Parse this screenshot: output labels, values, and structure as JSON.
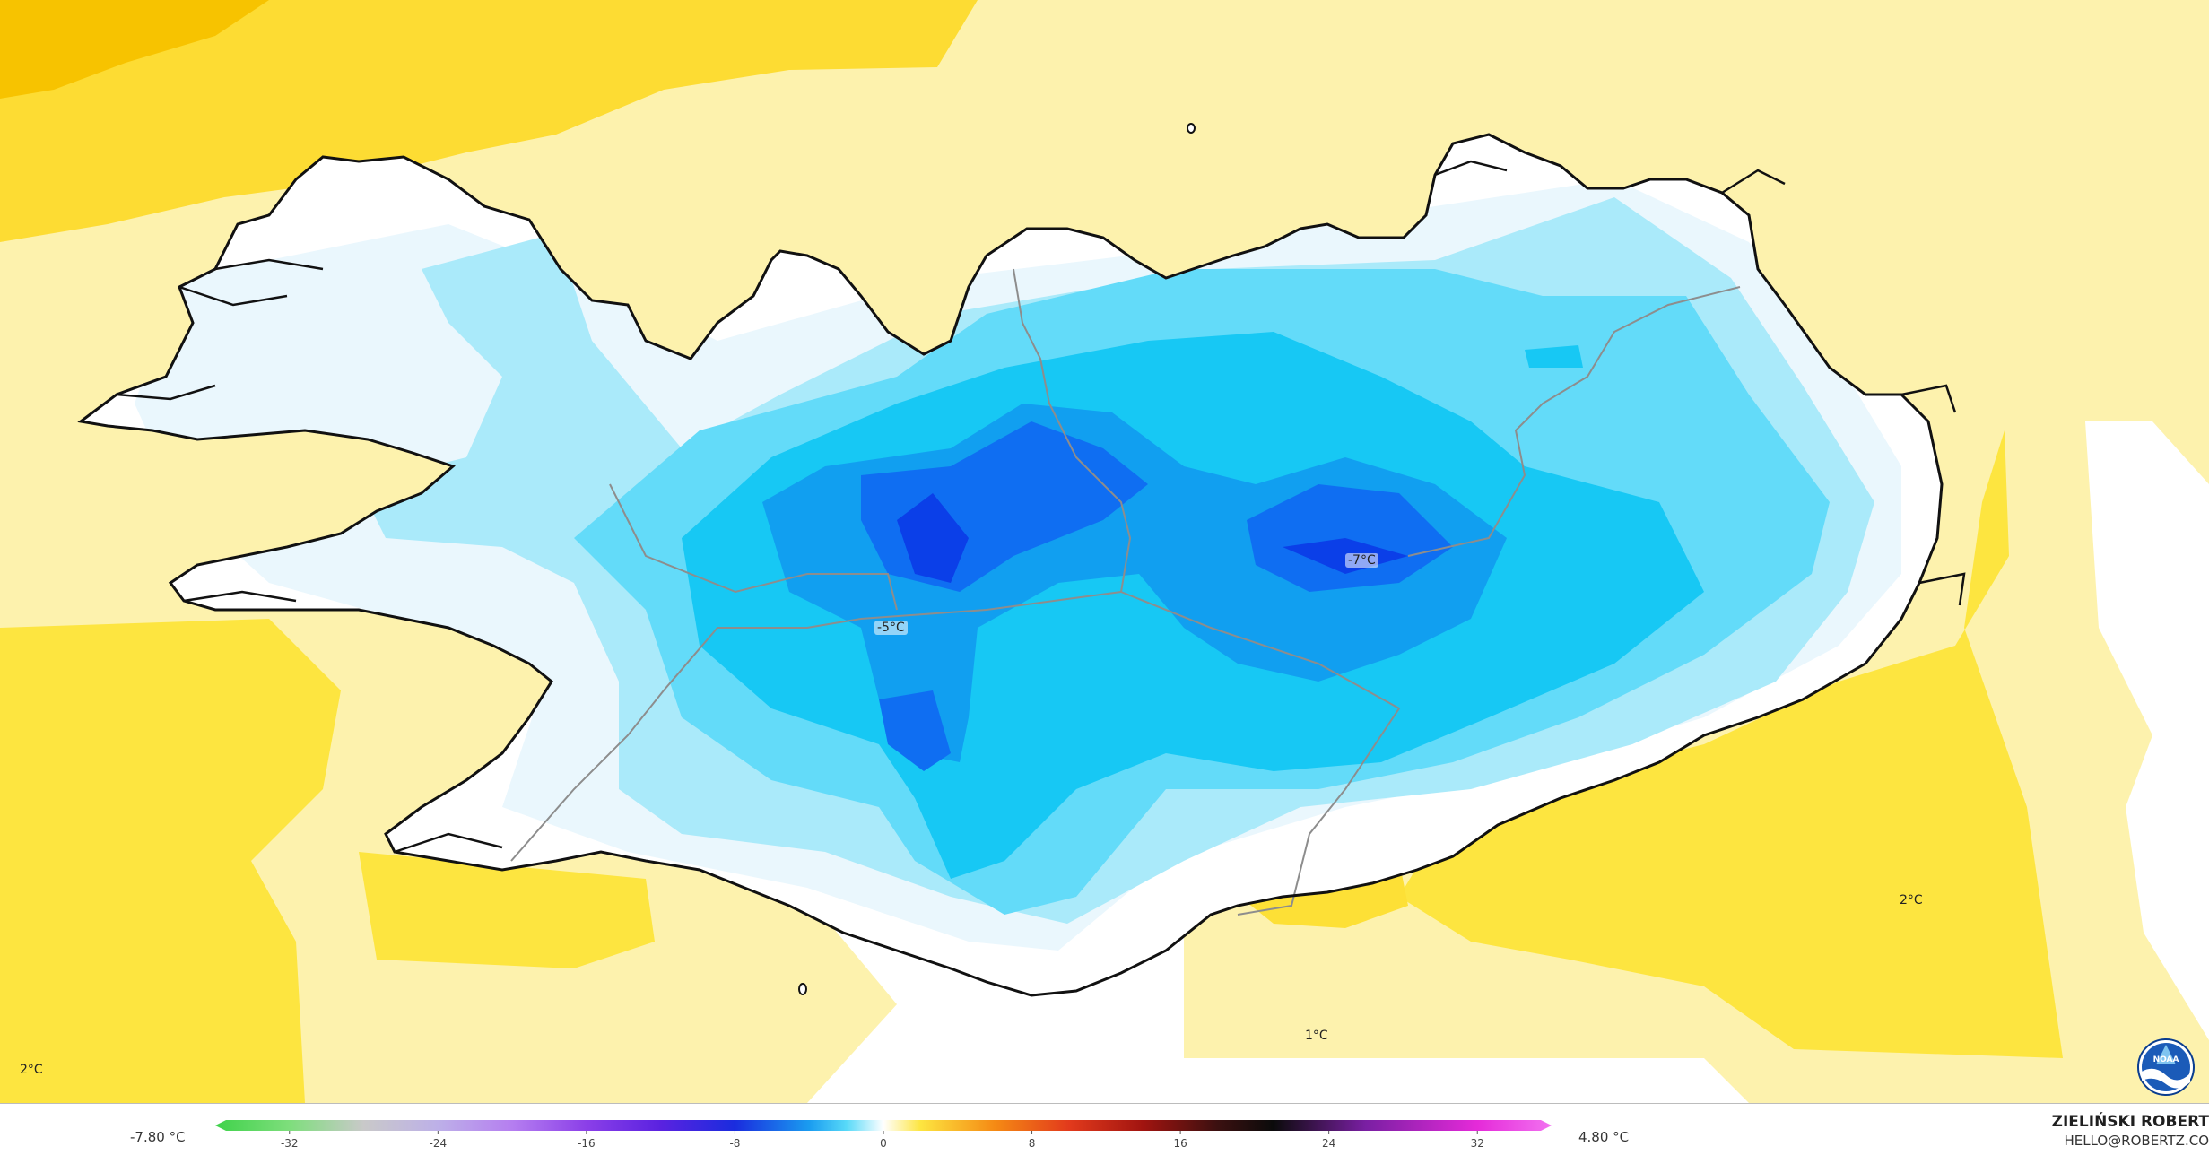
{
  "map": {
    "labels": {
      "west_center": "-5°C",
      "east_center": "-7°C",
      "far_right": "2°C",
      "bottom_left": "2°C",
      "bottom_center": "1°C"
    },
    "colors": {
      "sea_light_yellow": "#fdf2ad",
      "sea_yellow": "#fde540",
      "sea_gold": "#fdd92a",
      "sea_orange": "#f9c200",
      "white_zone": "#ffffff",
      "ice_pale": "#eaf7fd",
      "ice_light": "#aaeafa",
      "ice_cyan": "#63dbf9",
      "ice_sky": "#17c8f4",
      "ice_blue": "#119ff0",
      "ice_deep": "#0f6ef2",
      "ice_core": "#0b3fe8",
      "coastline": "#111111",
      "road": "#8d8d8d"
    }
  },
  "colorbar": {
    "min_label": "-7.80 °C",
    "max_label": "4.80 °C",
    "ticks": [
      "-32",
      "-24",
      "-16",
      "-8",
      "0",
      "8",
      "16",
      "24",
      "32"
    ],
    "range": [
      -36,
      36
    ],
    "stops": [
      {
        "v": -36,
        "c": "#3fd24a"
      },
      {
        "v": -32,
        "c": "#7ede7c"
      },
      {
        "v": -28,
        "c": "#c9c9c9"
      },
      {
        "v": -24,
        "c": "#bdb0e8"
      },
      {
        "v": -20,
        "c": "#b57ef0"
      },
      {
        "v": -16,
        "c": "#8b3fe8"
      },
      {
        "v": -12,
        "c": "#5a22e0"
      },
      {
        "v": -8,
        "c": "#1a2cde"
      },
      {
        "v": -4,
        "c": "#1a9cf0"
      },
      {
        "v": -2,
        "c": "#57d9f8"
      },
      {
        "v": 0,
        "c": "#ffffff"
      },
      {
        "v": 2,
        "c": "#fde540"
      },
      {
        "v": 6,
        "c": "#f58a14"
      },
      {
        "v": 10,
        "c": "#e23a1c"
      },
      {
        "v": 14,
        "c": "#a11410"
      },
      {
        "v": 18,
        "c": "#3b1010"
      },
      {
        "v": 21,
        "c": "#0b0b0b"
      },
      {
        "v": 26,
        "c": "#7a1fa3"
      },
      {
        "v": 32,
        "c": "#e52ad9"
      },
      {
        "v": 36,
        "c": "#f272f0"
      }
    ]
  },
  "credit": {
    "name": "ZIELIŃSKI ROBERT",
    "email": "HELLO@ROBERTZ.CO"
  },
  "logo": {
    "icon": "noaa-logo-icon",
    "text": "NOAA"
  }
}
